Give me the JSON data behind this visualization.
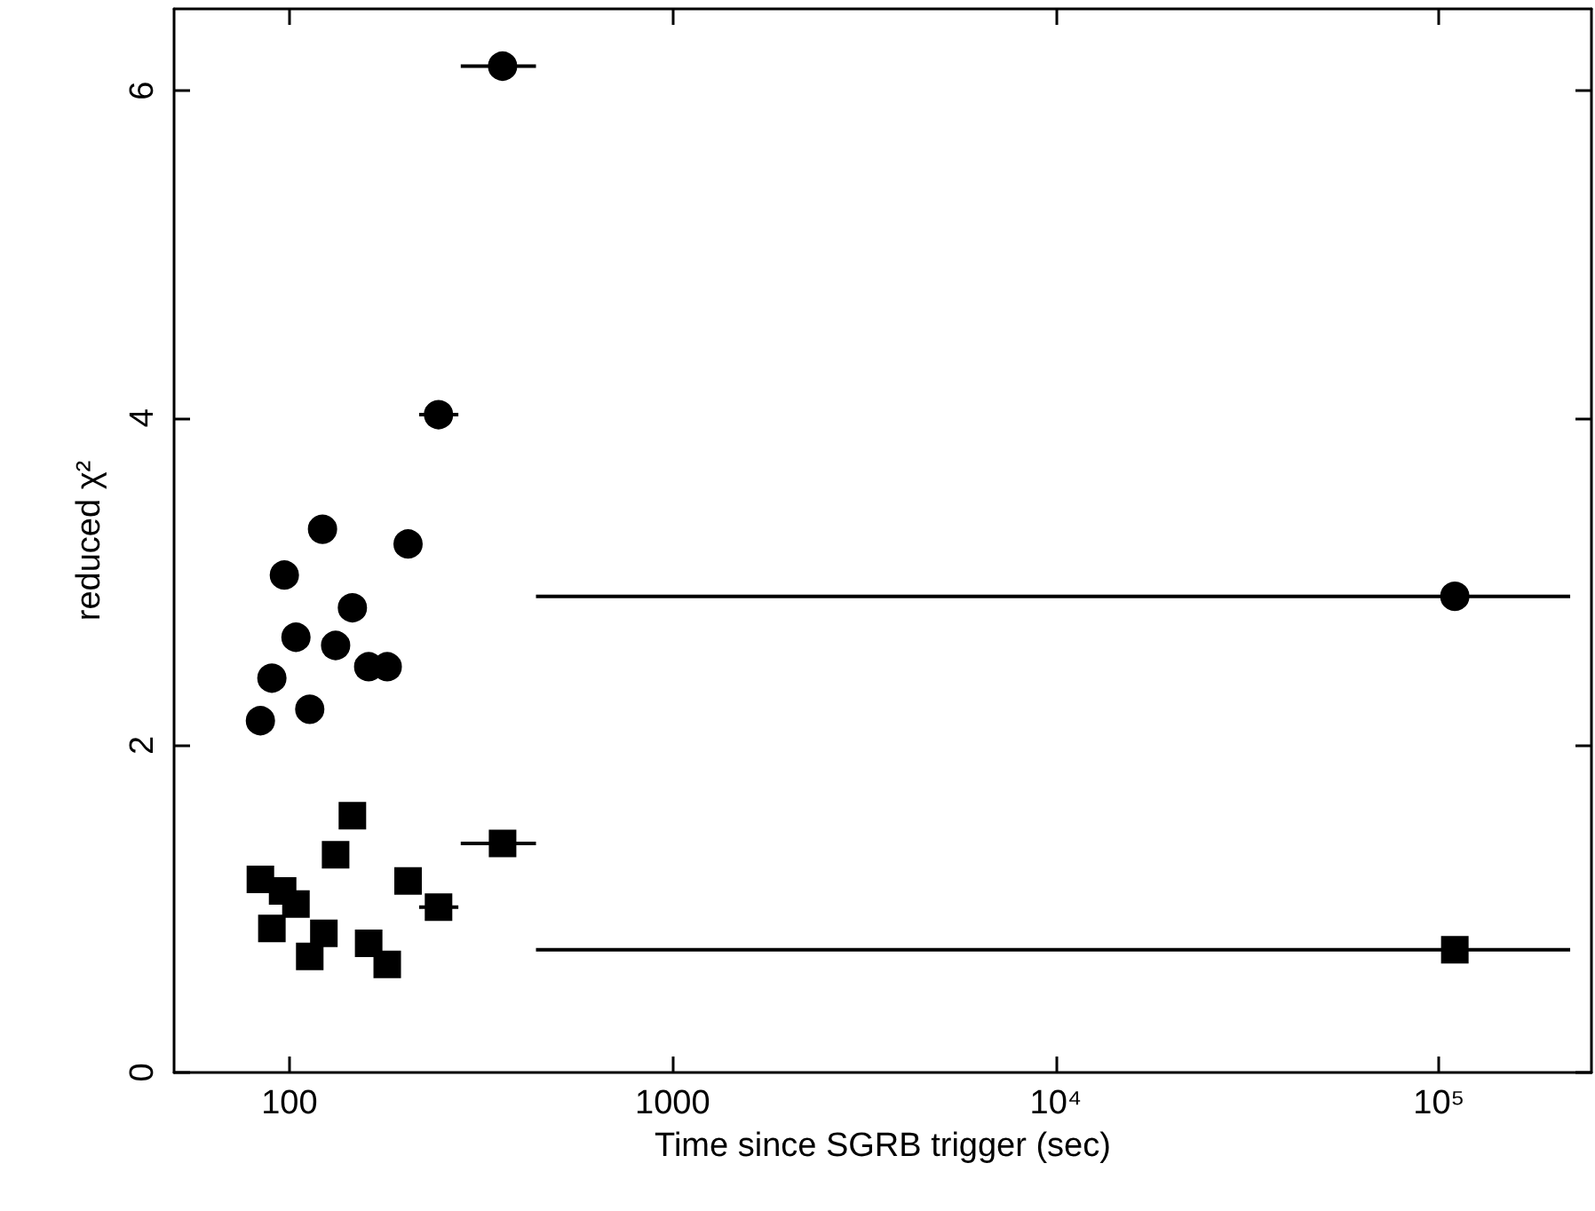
{
  "chart_data": {
    "type": "scatter",
    "xlabel": "Time since SGRB trigger (sec)",
    "ylabel": "reduced χ²",
    "log": "x",
    "grid": false,
    "xlim": [
      50,
      250000
    ],
    "xticks": [
      {
        "value": 100,
        "label": "100"
      },
      {
        "value": 1000,
        "label": "1000"
      },
      {
        "value": 10000,
        "label": "10⁴"
      },
      {
        "value": 100000,
        "label": "10⁵"
      }
    ],
    "ylim": [
      0,
      6.5
    ],
    "yticks": [
      0,
      2,
      4,
      6
    ],
    "series": [
      {
        "color": "#000000",
        "marker": "circle",
        "x": [
          245,
          122,
          204,
          97,
          146,
          104,
          132,
          161,
          180,
          90,
          113,
          84
        ],
        "values": [
          4.02,
          3.32,
          3.23,
          3.04,
          2.84,
          2.66,
          2.61,
          2.48,
          2.48,
          2.41,
          2.22,
          2.15
        ],
        "xerrors": [
          [
            218,
            276
          ],
          null,
          [
            189,
            220
          ],
          null,
          null,
          null,
          null,
          null,
          null,
          null,
          null,
          null
        ]
      },
      {
        "color": "#000000",
        "marker": "square",
        "x": [
          146,
          132,
          84,
          204,
          96,
          104,
          245,
          90,
          123,
          161,
          113,
          180
        ],
        "values": [
          1.57,
          1.33,
          1.18,
          1.17,
          1.11,
          1.03,
          1.01,
          0.88,
          0.85,
          0.79,
          0.71,
          0.66
        ],
        "xerrors": [
          null,
          null,
          null,
          [
            189,
            220
          ],
          null,
          null,
          [
            218,
            276
          ],
          null,
          null,
          null,
          null,
          null
        ]
      },
      {
        "color": "#000000",
        "marker": "circle",
        "x": [
          360,
          110000
        ],
        "values": [
          6.15,
          2.91
        ],
        "xerrors": [
          [
            280,
            440
          ],
          [
            440,
            220000
          ]
        ]
      },
      {
        "color": "#000000",
        "marker": "square",
        "x": [
          360,
          110000
        ],
        "values": [
          1.4,
          0.75
        ],
        "xerrors": [
          [
            280,
            440
          ],
          [
            440,
            220000
          ]
        ]
      }
    ]
  }
}
